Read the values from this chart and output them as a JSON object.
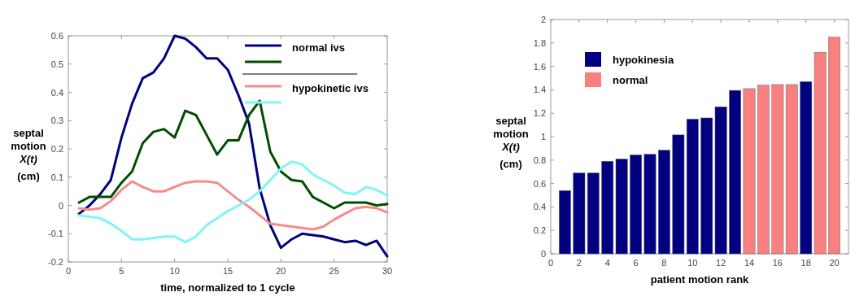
{
  "chart_data": [
    {
      "type": "line",
      "xlabel": "time, normalized to 1 cycle",
      "ylabel": "septal motion X(t) (cm)",
      "x": [
        1,
        2,
        3,
        4,
        5,
        6,
        7,
        8,
        9,
        10,
        11,
        12,
        13,
        14,
        15,
        16,
        17,
        18,
        19,
        20,
        21,
        22,
        23,
        24,
        25,
        26,
        27,
        28,
        29,
        30
      ],
      "xlim": [
        0,
        30
      ],
      "xticks": [
        0,
        5,
        10,
        15,
        20,
        25,
        30
      ],
      "ylim": [
        -0.2,
        0.6
      ],
      "yticks": [
        -0.2,
        -0.1,
        0,
        0.1,
        0.2,
        0.3,
        0.4,
        0.5,
        0.6
      ],
      "legend": "top right",
      "grid": false,
      "series": [
        {
          "name": "normal ivs",
          "color": "#000080",
          "values": [
            -0.03,
            0.0,
            0.04,
            0.09,
            0.24,
            0.36,
            0.45,
            0.47,
            0.52,
            0.6,
            0.59,
            0.56,
            0.52,
            0.52,
            0.48,
            0.39,
            0.29,
            0.06,
            -0.07,
            -0.15,
            -0.12,
            -0.1,
            -0.105,
            -0.11,
            -0.12,
            -0.13,
            -0.125,
            -0.14,
            -0.125,
            -0.18
          ]
        },
        {
          "color": "#004d00",
          "values": [
            0.01,
            0.03,
            0.03,
            0.03,
            0.08,
            0.12,
            0.22,
            0.26,
            0.27,
            0.24,
            0.335,
            0.32,
            0.25,
            0.18,
            0.23,
            0.23,
            0.32,
            0.37,
            0.19,
            0.12,
            0.09,
            0.085,
            0.03,
            0.01,
            -0.01,
            0.01,
            0.01,
            0.01,
            0.0,
            0.005
          ]
        },
        {
          "name": "hypokinetic ivs",
          "color": "#f58c8a",
          "values": [
            -0.01,
            -0.015,
            -0.01,
            0.015,
            0.055,
            0.085,
            0.065,
            0.05,
            0.05,
            0.065,
            0.08,
            0.085,
            0.085,
            0.08,
            0.05,
            0.02,
            -0.005,
            -0.035,
            -0.065,
            -0.07,
            -0.075,
            -0.08,
            -0.085,
            -0.075,
            -0.05,
            -0.03,
            -0.01,
            -0.005,
            -0.01,
            -0.025
          ]
        },
        {
          "color": "#80f5f5",
          "values": [
            -0.035,
            -0.04,
            -0.045,
            -0.065,
            -0.09,
            -0.12,
            -0.12,
            -0.115,
            -0.11,
            -0.11,
            -0.13,
            -0.11,
            -0.07,
            -0.045,
            -0.02,
            0.0,
            0.02,
            0.05,
            0.09,
            0.13,
            0.155,
            0.145,
            0.11,
            0.09,
            0.07,
            0.045,
            0.04,
            0.065,
            0.055,
            0.035
          ]
        }
      ]
    },
    {
      "type": "bar",
      "xlabel": "patient motion rank",
      "ylabel": "septal motion X(t) (cm)",
      "x": [
        1,
        2,
        3,
        4,
        5,
        6,
        7,
        8,
        9,
        10,
        11,
        12,
        13,
        14,
        15,
        16,
        17,
        18,
        19,
        20
      ],
      "xlim": [
        0,
        21
      ],
      "xticks": [
        0,
        2,
        4,
        6,
        8,
        10,
        12,
        14,
        16,
        18,
        20
      ],
      "ylim": [
        0,
        2
      ],
      "yticks": [
        0,
        0.2,
        0.4,
        0.6,
        0.8,
        1,
        1.2,
        1.4,
        1.6,
        1.8,
        2
      ],
      "legend": "top left",
      "grid": false,
      "series": [
        {
          "name": "hypokinesia",
          "color": "#000080",
          "values": [
            0.54,
            0.69,
            0.69,
            0.79,
            0.81,
            0.845,
            0.85,
            0.885,
            1.015,
            1.15,
            1.16,
            1.255,
            1.395,
            null,
            null,
            null,
            null,
            1.47,
            null,
            null
          ]
        },
        {
          "name": "normal",
          "color": "#fa8080",
          "values": [
            null,
            null,
            null,
            null,
            null,
            null,
            null,
            null,
            null,
            null,
            null,
            null,
            null,
            1.41,
            1.44,
            1.445,
            1.445,
            null,
            1.72,
            1.85
          ]
        }
      ]
    }
  ]
}
